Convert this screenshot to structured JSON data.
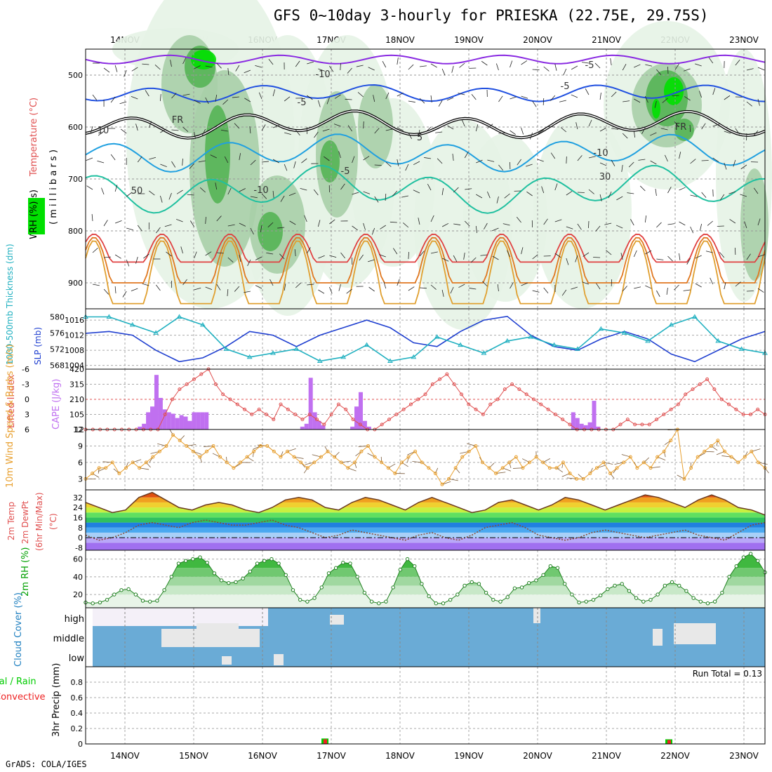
{
  "title": "GFS 0~10day 3-hourly for PRIESKA (22.75E, 29.75S)",
  "credit": "GrADS: COLA/IGES",
  "colors": {
    "rh_light": "#e6f3e6",
    "rh_mid": "#a8cfa8",
    "rh_dark": "#55b455",
    "rh_bright": "#00e000",
    "temp_purple": "#8a2be2",
    "temp_blue": "#2050e0",
    "temp_cyan": "#20a0e0",
    "temp_teal": "#20c0a0",
    "freezing": "#000000",
    "warm_orange": "#e0a030",
    "warm_red": "#e04040",
    "slp": "#1f3fd0",
    "thickness": "#20b0c0",
    "cape": "#c070f0",
    "lifted": "#e05050",
    "wind": "#e8a030",
    "rh2m": "#00a000",
    "cloud": "#6aabd6",
    "cloud_gap": "#e8e8e8",
    "precip_total": "#00cc00",
    "precip_conv": "#ee2222"
  },
  "chart_data": [
    {
      "type": "contour",
      "name": "vertical profile",
      "ylabel_parts": [
        "RH (%)",
        "Temperature (°C)",
        "Wind (m/s)"
      ],
      "ylabel_axis": "( m i l l i b a r s )",
      "yticks": [
        500,
        600,
        700,
        800,
        900
      ],
      "ylim": [
        450,
        950
      ],
      "dates": [
        "14NOV",
        "15NOV",
        "16NOV",
        "17NOV",
        "18NOV",
        "19NOV",
        "20NOV",
        "21NOV",
        "22NOV",
        "23NOV"
      ],
      "contour_labels": [
        "-10",
        "-5",
        "FR",
        "-5",
        "5",
        "10",
        "-5",
        "-10",
        "FR",
        "-5",
        "-10",
        "30",
        "50"
      ],
      "isotherms": [
        {
          "label": "-10",
          "level": 470,
          "color": "temp_purple"
        },
        {
          "label": "-5",
          "level": 535,
          "color": "temp_blue"
        },
        {
          "label": "FR",
          "level": 595,
          "color": "freezing"
        },
        {
          "label": "5",
          "level": 650,
          "color": "temp_cyan"
        },
        {
          "label": "10",
          "level": 720,
          "color": "temp_teal"
        }
      ]
    },
    {
      "type": "line",
      "name": "SLP & thickness",
      "ylabel_left": "1000-500mb Thickness (dm)",
      "ylabel_right": "SLP (mb)",
      "yticks_left": [
        568,
        572,
        576,
        580
      ],
      "yticks_right": [
        1004,
        1008,
        1012,
        1016
      ],
      "ylim_left": [
        567,
        582
      ],
      "ylim_right": [
        1003,
        1019
      ],
      "series": [
        {
          "name": "SLP",
          "axis": "right",
          "values": [
            1012.5,
            1013,
            1012,
            1008,
            1005,
            1006,
            1009,
            1013,
            1012,
            1009,
            1012,
            1014,
            1016,
            1014,
            1010,
            1009,
            1013,
            1016,
            1017,
            1012,
            1009,
            1008,
            1011,
            1013,
            1011,
            1007,
            1005,
            1008,
            1011,
            1013
          ]
        },
        {
          "name": "Thickness",
          "axis": "left",
          "values": [
            580,
            580,
            578,
            576,
            580,
            578,
            572,
            570,
            571,
            572,
            569,
            570,
            573,
            569,
            570,
            575,
            573,
            571,
            574,
            575,
            573,
            572,
            577,
            576,
            574,
            578,
            580,
            574,
            572,
            571
          ]
        }
      ]
    },
    {
      "type": "bar",
      "name": "CAPE & Lifted Index",
      "ylabel_left": "Lifted Index",
      "ylabel_right": "CAPE (J/kg)",
      "yticks_left": [
        "-6",
        "-3",
        "0",
        "3",
        "6"
      ],
      "yticks_right": [
        "420",
        "315",
        "210",
        "105",
        "12"
      ],
      "ylim_cape": [
        0,
        420
      ],
      "ylim_li": [
        -6,
        6
      ],
      "cape_values": [
        0,
        0,
        0,
        0,
        0,
        0,
        0,
        0,
        0,
        0,
        0,
        0,
        0,
        20,
        40,
        120,
        160,
        380,
        220,
        140,
        120,
        110,
        80,
        100,
        90,
        60,
        120,
        120,
        120,
        120,
        0,
        0,
        0,
        0,
        0,
        0,
        0,
        0,
        0,
        0,
        0,
        0,
        0,
        0,
        0,
        0,
        0,
        0,
        0,
        0,
        0,
        0,
        20,
        40,
        360,
        120,
        60,
        30,
        0,
        0,
        0,
        0,
        0,
        0,
        20,
        160,
        260,
        60,
        20,
        0,
        0,
        0,
        0,
        0,
        0,
        0,
        0,
        0,
        0,
        0,
        0,
        0,
        0,
        0,
        0,
        0,
        0,
        0,
        0,
        0,
        0,
        0,
        0,
        0,
        0,
        0,
        0,
        0,
        0,
        0,
        0,
        0,
        0,
        0,
        0,
        0,
        0,
        0,
        0,
        0,
        0,
        0,
        0,
        0,
        0,
        0,
        0,
        120,
        80,
        40,
        30,
        50,
        200,
        20,
        0,
        0,
        0,
        0,
        0,
        0,
        0,
        0,
        0,
        0,
        0,
        0,
        0,
        0,
        0,
        0,
        0,
        0,
        0,
        0,
        0,
        0,
        0,
        0,
        0,
        0,
        0,
        0,
        0,
        0,
        0,
        0,
        0,
        0,
        0,
        0,
        0,
        0,
        0,
        0
      ],
      "li_values": [
        6,
        6,
        6,
        6,
        6,
        6,
        6,
        6,
        6,
        6,
        6,
        3,
        0,
        -2,
        -3,
        -4,
        -5,
        -6,
        -3,
        -1,
        0,
        1,
        2,
        3,
        2,
        3,
        4,
        1,
        2,
        3,
        4,
        3,
        4,
        5,
        3,
        1,
        2,
        4,
        5,
        6,
        6,
        5,
        4,
        3,
        2,
        1,
        0,
        -1,
        -3,
        -4,
        -5,
        -3,
        -1,
        1,
        2,
        3,
        1,
        0,
        -2,
        -3,
        -2,
        -1,
        0,
        1,
        2,
        3,
        4,
        5,
        6,
        6,
        6,
        6,
        6,
        6,
        5,
        4,
        5,
        5,
        5,
        4,
        3,
        2,
        1,
        -1,
        -2,
        -3,
        -4,
        -2,
        0,
        1,
        2,
        3,
        3,
        2,
        3
      ]
    },
    {
      "type": "line",
      "name": "10m wind",
      "ylabel": "10m Wind Speed & Barbs (m/s)",
      "yticks": [
        3,
        6,
        9,
        12
      ],
      "ylim": [
        1,
        12
      ],
      "values": [
        3,
        4,
        5,
        5,
        6,
        4,
        5,
        6,
        5,
        6,
        7,
        8,
        9,
        11,
        10,
        9,
        8,
        7,
        8,
        9,
        7,
        6,
        5,
        6,
        7,
        8,
        9,
        9,
        8,
        7,
        8,
        7,
        6,
        5,
        6,
        7,
        8,
        7,
        6,
        5,
        6,
        8,
        9,
        7,
        6,
        5,
        4,
        6,
        7,
        8,
        6,
        5,
        4,
        2,
        3,
        5,
        7,
        8,
        9,
        6,
        5,
        4,
        5,
        6,
        7,
        5,
        6,
        7,
        6,
        5,
        5,
        6,
        4,
        3,
        3,
        4,
        5,
        6,
        4,
        5,
        6,
        7,
        5,
        6,
        5,
        7,
        8,
        10,
        12,
        3,
        5,
        7,
        8,
        9,
        10,
        8,
        7,
        6,
        7,
        8,
        6,
        5
      ]
    },
    {
      "type": "area",
      "name": "2m temperature",
      "ylabel_parts": [
        "2m Temp",
        "2m DewPt",
        "(6hr Min/Max)",
        "(°C)"
      ],
      "yticks": [
        -8,
        0,
        8,
        16,
        24,
        32
      ],
      "ylim": [
        -10,
        38
      ],
      "temp_values": [
        28,
        24,
        20,
        22,
        32,
        36,
        30,
        24,
        22,
        26,
        28,
        26,
        22,
        20,
        24,
        30,
        32,
        30,
        24,
        22,
        28,
        32,
        30,
        26,
        22,
        28,
        32,
        28,
        24,
        20,
        22,
        28,
        30,
        26,
        22,
        26,
        32,
        30,
        26,
        22,
        26,
        30,
        34,
        32,
        28,
        24,
        30,
        34,
        30,
        24,
        22,
        18
      ],
      "dewpt_values": [
        2,
        -2,
        0,
        4,
        10,
        12,
        10,
        8,
        12,
        14,
        12,
        10,
        10,
        12,
        14,
        10,
        8,
        4,
        0,
        2,
        6,
        4,
        2,
        0,
        -2,
        2,
        4,
        0,
        -2,
        2,
        8,
        10,
        12,
        8,
        2,
        0,
        -2,
        0,
        4,
        6,
        4,
        2,
        0,
        2,
        4,
        6,
        2,
        0,
        -2,
        4,
        10,
        12
      ]
    },
    {
      "type": "area",
      "name": "2m RH",
      "ylabel": "2m RH (%)",
      "yticks": [
        20,
        40,
        60
      ],
      "ylim": [
        5,
        70
      ],
      "values": [
        11,
        10,
        11,
        14,
        20,
        25,
        26,
        20,
        13,
        12,
        13,
        25,
        40,
        55,
        58,
        60,
        62,
        56,
        44,
        36,
        33,
        34,
        38,
        46,
        55,
        58,
        60,
        55,
        42,
        25,
        14,
        12,
        16,
        28,
        44,
        50,
        56,
        55,
        40,
        22,
        12,
        10,
        12,
        28,
        48,
        60,
        52,
        32,
        18,
        10,
        10,
        14,
        20,
        30,
        34,
        32,
        22,
        14,
        12,
        17,
        27,
        28,
        33,
        36,
        42,
        52,
        50,
        32,
        20,
        11,
        12,
        14,
        19,
        26,
        30,
        32,
        24,
        16,
        12,
        14,
        20,
        30,
        34,
        30,
        24,
        16,
        12,
        10,
        12,
        22,
        40,
        52,
        62,
        66,
        58,
        45
      ]
    },
    {
      "type": "heatmap",
      "name": "cloud cover",
      "ylabel": "Cloud Cover (%)",
      "levels": [
        "high",
        "middle",
        "low"
      ]
    },
    {
      "type": "bar",
      "name": "3hr precipitation",
      "ylabel_parts": [
        "Total / Rain",
        "Convective",
        "3hr Precip (mm)"
      ],
      "yticks": [
        0,
        0.2,
        0.4,
        0.6,
        0.8
      ],
      "ylim": [
        0,
        1
      ],
      "run_total_label": "Run Total = 0.13",
      "bars": [
        {
          "date": "17NOV",
          "total": 0.07,
          "conv": 0.06
        },
        {
          "date": "22NOV",
          "total": 0.06,
          "conv": 0.05
        }
      ]
    }
  ]
}
